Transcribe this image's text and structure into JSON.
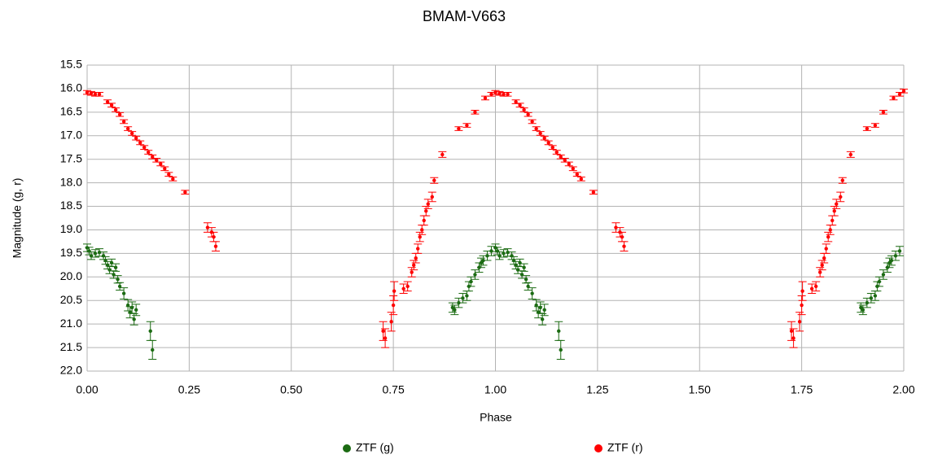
{
  "chart_data": {
    "type": "scatter",
    "title": "BMAM-V663",
    "x_label": "Phase",
    "y_label": "Magnitude (g, r)",
    "xlim": [
      0,
      2
    ],
    "ylim": [
      15.5,
      22
    ],
    "y_inverted": true,
    "grid": true,
    "legend": "bottom",
    "xticks": [
      {
        "value": 0,
        "label": "0.00"
      },
      {
        "value": 0.25,
        "label": "0.25"
      },
      {
        "value": 0.5,
        "label": "0.50"
      },
      {
        "value": 0.75,
        "label": "0.75"
      },
      {
        "value": 1,
        "label": "1.00"
      },
      {
        "value": 1.25,
        "label": "1.25"
      },
      {
        "value": 1.5,
        "label": "1.50"
      },
      {
        "value": 1.75,
        "label": "1.75"
      },
      {
        "value": 2,
        "label": "2.00"
      }
    ],
    "yticks": [
      15.5,
      {
        "value": 16,
        "label": "16.0"
      },
      16.5,
      {
        "value": 17,
        "label": "17.0"
      },
      17.5,
      {
        "value": 18,
        "label": "18.0"
      },
      18.5,
      {
        "value": 19,
        "label": "19.0"
      },
      19.5,
      {
        "value": 20,
        "label": "20.0"
      },
      20.5,
      {
        "value": 21,
        "label": "21.0"
      },
      21.5,
      {
        "value": 22,
        "label": "22.0"
      }
    ],
    "series": [
      {
        "name": "ZTF (g)",
        "color": "#1b6b12",
        "x": [
          0.0,
          0.005,
          0.01,
          0.02,
          0.03,
          0.04,
          0.045,
          0.05,
          0.055,
          0.06,
          0.065,
          0.07,
          0.075,
          0.08,
          0.09,
          0.1,
          0.105,
          0.11,
          0.115,
          0.12,
          0.155,
          0.16,
          0.895,
          0.9,
          0.91,
          0.92,
          0.93,
          0.935,
          0.94,
          0.95,
          0.96,
          0.965,
          0.97,
          0.98,
          0.99,
          1.0,
          1.005,
          1.01,
          1.02,
          1.03,
          1.04,
          1.045,
          1.05,
          1.055,
          1.06,
          1.065,
          1.07,
          1.075,
          1.08,
          1.09,
          1.1,
          1.105,
          1.11,
          1.115,
          1.12,
          1.155,
          1.16,
          1.895,
          1.9,
          1.91,
          1.92,
          1.93,
          1.935,
          1.94,
          1.95,
          1.96,
          1.965,
          1.97,
          1.98,
          1.99
        ],
        "values": [
          19.38,
          19.45,
          19.55,
          19.5,
          19.48,
          19.55,
          19.65,
          19.75,
          19.85,
          19.7,
          19.95,
          19.8,
          20.05,
          20.2,
          20.35,
          20.6,
          20.75,
          20.65,
          20.9,
          20.7,
          21.15,
          21.55,
          20.65,
          20.7,
          20.55,
          20.45,
          20.4,
          20.2,
          20.1,
          19.95,
          19.8,
          19.7,
          19.65,
          19.55,
          19.45,
          19.38,
          19.45,
          19.55,
          19.5,
          19.48,
          19.55,
          19.65,
          19.75,
          19.85,
          19.7,
          19.95,
          19.8,
          20.05,
          20.2,
          20.35,
          20.6,
          20.75,
          20.65,
          20.9,
          20.7,
          21.15,
          21.55,
          20.65,
          20.7,
          20.55,
          20.45,
          20.4,
          20.2,
          20.1,
          19.95,
          19.8,
          19.7,
          19.65,
          19.55,
          19.45
        ],
        "errors": [
          0.08,
          0.08,
          0.08,
          0.08,
          0.08,
          0.08,
          0.08,
          0.08,
          0.08,
          0.08,
          0.08,
          0.08,
          0.08,
          0.08,
          0.12,
          0.12,
          0.12,
          0.12,
          0.12,
          0.12,
          0.2,
          0.2,
          0.1,
          0.1,
          0.1,
          0.1,
          0.1,
          0.1,
          0.1,
          0.1,
          0.1,
          0.1,
          0.1,
          0.1,
          0.1,
          0.08,
          0.08,
          0.08,
          0.08,
          0.08,
          0.08,
          0.08,
          0.08,
          0.08,
          0.08,
          0.08,
          0.08,
          0.08,
          0.08,
          0.12,
          0.12,
          0.12,
          0.12,
          0.12,
          0.12,
          0.2,
          0.2,
          0.1,
          0.1,
          0.1,
          0.1,
          0.1,
          0.1,
          0.1,
          0.1,
          0.1,
          0.1,
          0.1,
          0.1,
          0.1
        ]
      },
      {
        "name": "ZTF (r)",
        "color": "#ff0000",
        "x": [
          0.0,
          0.01,
          0.02,
          0.03,
          0.05,
          0.06,
          0.07,
          0.08,
          0.09,
          0.1,
          0.11,
          0.12,
          0.13,
          0.14,
          0.15,
          0.16,
          0.17,
          0.18,
          0.19,
          0.2,
          0.21,
          0.24,
          0.295,
          0.305,
          0.31,
          0.315,
          0.725,
          0.73,
          0.745,
          0.75,
          0.752,
          0.775,
          0.785,
          0.795,
          0.8,
          0.805,
          0.81,
          0.815,
          0.82,
          0.825,
          0.83,
          0.835,
          0.845,
          0.85,
          0.87,
          0.91,
          0.93,
          0.95,
          0.975,
          0.99,
          1.0,
          1.01,
          1.02,
          1.03,
          1.05,
          1.06,
          1.07,
          1.08,
          1.09,
          1.1,
          1.11,
          1.12,
          1.13,
          1.14,
          1.15,
          1.16,
          1.17,
          1.18,
          1.19,
          1.2,
          1.21,
          1.24,
          1.295,
          1.305,
          1.31,
          1.315,
          1.725,
          1.73,
          1.745,
          1.75,
          1.752,
          1.775,
          1.785,
          1.795,
          1.8,
          1.805,
          1.81,
          1.815,
          1.82,
          1.825,
          1.83,
          1.835,
          1.845,
          1.85,
          1.87,
          1.91,
          1.93,
          1.95,
          1.975,
          1.99,
          2.0
        ],
        "values": [
          16.08,
          16.1,
          16.12,
          16.12,
          16.28,
          16.35,
          16.45,
          16.55,
          16.7,
          16.85,
          16.95,
          17.05,
          17.15,
          17.25,
          17.35,
          17.45,
          17.52,
          17.6,
          17.7,
          17.82,
          17.92,
          18.2,
          18.95,
          19.05,
          19.15,
          19.35,
          21.15,
          21.3,
          20.95,
          20.6,
          20.3,
          20.25,
          20.2,
          19.9,
          19.75,
          19.6,
          19.4,
          19.15,
          19.0,
          18.8,
          18.6,
          18.45,
          18.3,
          17.95,
          17.4,
          16.85,
          16.78,
          16.5,
          16.2,
          16.12,
          16.08,
          16.1,
          16.12,
          16.12,
          16.28,
          16.35,
          16.45,
          16.55,
          16.7,
          16.85,
          16.95,
          17.05,
          17.15,
          17.25,
          17.35,
          17.45,
          17.52,
          17.6,
          17.7,
          17.82,
          17.92,
          18.2,
          18.95,
          19.05,
          19.15,
          19.35,
          21.15,
          21.3,
          20.95,
          20.6,
          20.3,
          20.25,
          20.2,
          19.9,
          19.75,
          19.6,
          19.4,
          19.15,
          19.0,
          18.8,
          18.6,
          18.45,
          18.3,
          17.95,
          17.4,
          16.85,
          16.78,
          16.5,
          16.2,
          16.12,
          16.05
        ],
        "errors": [
          0.04,
          0.04,
          0.04,
          0.04,
          0.04,
          0.04,
          0.04,
          0.04,
          0.04,
          0.04,
          0.04,
          0.04,
          0.04,
          0.04,
          0.04,
          0.04,
          0.04,
          0.04,
          0.04,
          0.04,
          0.04,
          0.04,
          0.1,
          0.1,
          0.1,
          0.1,
          0.2,
          0.2,
          0.2,
          0.2,
          0.2,
          0.1,
          0.1,
          0.1,
          0.1,
          0.1,
          0.1,
          0.1,
          0.1,
          0.1,
          0.1,
          0.1,
          0.1,
          0.06,
          0.06,
          0.04,
          0.04,
          0.04,
          0.04,
          0.04,
          0.04,
          0.04,
          0.04,
          0.04,
          0.04,
          0.04,
          0.04,
          0.04,
          0.04,
          0.04,
          0.04,
          0.04,
          0.04,
          0.04,
          0.04,
          0.04,
          0.04,
          0.04,
          0.04,
          0.04,
          0.04,
          0.04,
          0.1,
          0.1,
          0.1,
          0.1,
          0.2,
          0.2,
          0.2,
          0.2,
          0.2,
          0.1,
          0.1,
          0.1,
          0.1,
          0.1,
          0.1,
          0.1,
          0.1,
          0.1,
          0.1,
          0.1,
          0.1,
          0.06,
          0.06,
          0.04,
          0.04,
          0.04,
          0.04,
          0.04,
          0.04
        ]
      }
    ]
  }
}
